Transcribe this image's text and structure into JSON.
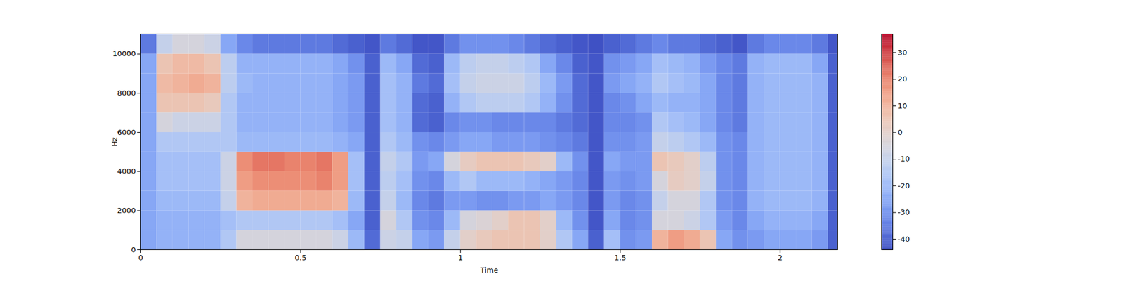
{
  "chart_data": {
    "type": "heatmap",
    "xlabel": "Time",
    "ylabel": "Hz",
    "xlim": [
      0,
      2.18
    ],
    "xticks": [
      0,
      0.5,
      1,
      1.5,
      2
    ],
    "ylim": [
      0,
      11025
    ],
    "yticks": [
      0,
      2000,
      4000,
      6000,
      8000,
      10000
    ],
    "x_bins": [
      0,
      0.05,
      0.1,
      0.15,
      0.2,
      0.25,
      0.3,
      0.35,
      0.4,
      0.45,
      0.5,
      0.55,
      0.6,
      0.65,
      0.7,
      0.75,
      0.8,
      0.85,
      0.9,
      0.95,
      1.0,
      1.05,
      1.1,
      1.15,
      1.2,
      1.25,
      1.3,
      1.35,
      1.4,
      1.45,
      1.5,
      1.55,
      1.6,
      1.65,
      1.7,
      1.75,
      1.8,
      1.85,
      1.9,
      1.95,
      2.0,
      2.05,
      2.1,
      2.15,
      2.18
    ],
    "y_bins": [
      0,
      1000,
      2000,
      3000,
      4000,
      5000,
      6000,
      7000,
      8000,
      9000,
      10000,
      11025
    ],
    "values": [
      [
        -25,
        -22,
        -22,
        -22,
        -22,
        -15,
        -5,
        -5,
        -5,
        -5,
        -5,
        -5,
        -8,
        -20,
        -38,
        -8,
        -10,
        -25,
        -28,
        -10,
        0,
        3,
        5,
        5,
        5,
        0,
        -15,
        -25,
        -40,
        -18,
        -30,
        -28,
        10,
        15,
        12,
        5,
        -25,
        -30,
        -28,
        -25,
        -25,
        -25,
        -28,
        -40
      ],
      [
        -25,
        -22,
        -22,
        -22,
        -22,
        -18,
        -15,
        -15,
        -15,
        -15,
        -15,
        -15,
        -18,
        -25,
        -40,
        -5,
        -15,
        -30,
        -32,
        -20,
        -5,
        -3,
        0,
        5,
        5,
        0,
        -20,
        -30,
        -42,
        -25,
        -32,
        -30,
        -5,
        -5,
        -8,
        -15,
        -28,
        -32,
        -25,
        -22,
        -22,
        -22,
        -25,
        -40
      ],
      [
        -25,
        -20,
        -20,
        -20,
        -20,
        -10,
        10,
        12,
        12,
        12,
        12,
        12,
        10,
        -20,
        -40,
        -10,
        -20,
        -32,
        -35,
        -28,
        -28,
        -30,
        -30,
        -28,
        -28,
        -25,
        -28,
        -32,
        -42,
        -28,
        -32,
        -30,
        -10,
        -5,
        -5,
        -15,
        -30,
        -32,
        -22,
        -20,
        -20,
        -20,
        -22,
        -40
      ],
      [
        -25,
        -18,
        -18,
        -18,
        -18,
        -8,
        15,
        18,
        18,
        18,
        18,
        20,
        15,
        -18,
        -40,
        -12,
        -18,
        -30,
        -32,
        -20,
        -15,
        -20,
        -20,
        -20,
        -22,
        -25,
        -28,
        -32,
        -42,
        -28,
        -30,
        -28,
        -5,
        2,
        0,
        -10,
        -30,
        -32,
        -22,
        -20,
        -20,
        -20,
        -22,
        -40
      ],
      [
        -25,
        -18,
        -18,
        -18,
        -18,
        -8,
        18,
        22,
        22,
        20,
        20,
        22,
        15,
        -18,
        -40,
        -10,
        -15,
        -28,
        -25,
        -5,
        2,
        5,
        5,
        5,
        3,
        0,
        -20,
        -30,
        -42,
        -25,
        -28,
        -28,
        5,
        3,
        0,
        -12,
        -30,
        -32,
        -22,
        -20,
        -20,
        -20,
        -22,
        -40
      ],
      [
        -25,
        -15,
        -15,
        -15,
        -15,
        -15,
        -20,
        -20,
        -20,
        -20,
        -20,
        -20,
        -22,
        -25,
        -40,
        -15,
        -20,
        -30,
        -32,
        -28,
        -25,
        -25,
        -28,
        -28,
        -28,
        -30,
        -32,
        -35,
        -42,
        -30,
        -30,
        -28,
        -10,
        -12,
        -15,
        -20,
        -30,
        -32,
        -22,
        -20,
        -20,
        -20,
        -22,
        -40
      ],
      [
        -25,
        -5,
        -8,
        -8,
        -8,
        -15,
        -22,
        -22,
        -22,
        -22,
        -22,
        -22,
        -25,
        -28,
        -40,
        -18,
        -22,
        -38,
        -40,
        -32,
        -30,
        -30,
        -32,
        -32,
        -32,
        -32,
        -35,
        -38,
        -42,
        -32,
        -32,
        -30,
        -15,
        -18,
        -20,
        -25,
        -32,
        -35,
        -22,
        -20,
        -20,
        -20,
        -22,
        -40
      ],
      [
        -25,
        5,
        5,
        5,
        3,
        -15,
        -22,
        -22,
        -22,
        -22,
        -22,
        -22,
        -25,
        -28,
        -40,
        -18,
        -22,
        -38,
        -40,
        -22,
        -15,
        -12,
        -12,
        -12,
        -15,
        -22,
        -30,
        -38,
        -42,
        -32,
        -30,
        -25,
        -20,
        -22,
        -22,
        -25,
        -32,
        -35,
        -22,
        -20,
        -20,
        -20,
        -22,
        -40
      ],
      [
        -25,
        8,
        10,
        12,
        10,
        -12,
        -20,
        -22,
        -22,
        -22,
        -22,
        -22,
        -25,
        -28,
        -40,
        -18,
        -22,
        -35,
        -38,
        -18,
        -10,
        -8,
        -8,
        -8,
        -12,
        -20,
        -28,
        -38,
        -42,
        -28,
        -25,
        -22,
        -15,
        -18,
        -20,
        -25,
        -32,
        -35,
        -22,
        -20,
        -20,
        -20,
        -22,
        -40
      ],
      [
        -25,
        5,
        8,
        8,
        5,
        -12,
        -22,
        -22,
        -22,
        -22,
        -22,
        -22,
        -25,
        -30,
        -40,
        -20,
        -25,
        -38,
        -40,
        -20,
        -12,
        -10,
        -10,
        -12,
        -15,
        -25,
        -32,
        -40,
        -42,
        -30,
        -28,
        -25,
        -18,
        -20,
        -22,
        -28,
        -32,
        -35,
        -22,
        -20,
        -20,
        -20,
        -25,
        -40
      ],
      [
        -35,
        -10,
        -5,
        -5,
        -8,
        -25,
        -32,
        -35,
        -35,
        -35,
        -35,
        -35,
        -38,
        -40,
        -42,
        -35,
        -38,
        -42,
        -42,
        -35,
        -30,
        -30,
        -30,
        -32,
        -35,
        -38,
        -40,
        -42,
        -43,
        -40,
        -38,
        -35,
        -32,
        -35,
        -35,
        -38,
        -40,
        -42,
        -35,
        -32,
        -32,
        -32,
        -35,
        -42
      ]
    ],
    "colorbar": {
      "range": [
        -44,
        37
      ],
      "ticks": [
        -40,
        -30,
        -20,
        -10,
        0,
        10,
        20,
        30
      ]
    }
  }
}
